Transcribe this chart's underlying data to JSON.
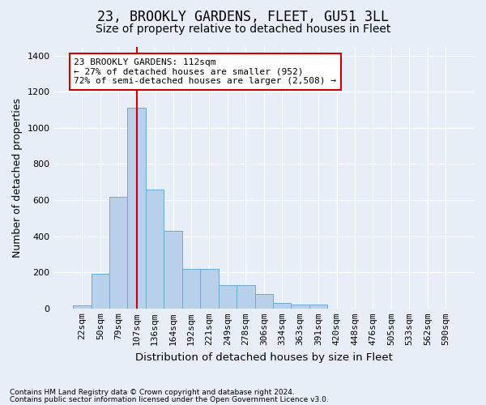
{
  "title": "23, BROOKLY GARDENS, FLEET, GU51 3LL",
  "subtitle": "Size of property relative to detached houses in Fleet",
  "xlabel": "Distribution of detached houses by size in Fleet",
  "ylabel": "Number of detached properties",
  "footnote1": "Contains HM Land Registry data © Crown copyright and database right 2024.",
  "footnote2": "Contains public sector information licensed under the Open Government Licence v3.0.",
  "bar_labels": [
    "22sqm",
    "50sqm",
    "79sqm",
    "107sqm",
    "136sqm",
    "164sqm",
    "192sqm",
    "221sqm",
    "249sqm",
    "278sqm",
    "306sqm",
    "334sqm",
    "363sqm",
    "391sqm",
    "420sqm",
    "448sqm",
    "476sqm",
    "505sqm",
    "533sqm",
    "562sqm",
    "590sqm"
  ],
  "bar_values": [
    17,
    193,
    617,
    1113,
    660,
    430,
    217,
    217,
    130,
    130,
    80,
    30,
    20,
    20,
    0,
    0,
    0,
    0,
    0,
    0,
    0
  ],
  "bar_color": "#b8d0ea",
  "bar_edgecolor": "#6aaad4",
  "vline_index": 3,
  "vline_color": "#cc0000",
  "annotation_text": "23 BROOKLY GARDENS: 112sqm\n← 27% of detached houses are smaller (952)\n72% of semi-detached houses are larger (2,508) →",
  "annotation_box_facecolor": "#ffffff",
  "annotation_box_edgecolor": "#cc0000",
  "ylim": [
    0,
    1450
  ],
  "yticks": [
    0,
    200,
    400,
    600,
    800,
    1000,
    1200,
    1400
  ],
  "bg_color": "#e8eef8",
  "grid_color": "#ffffff",
  "title_fontsize": 12,
  "subtitle_fontsize": 10,
  "xlabel_fontsize": 9.5,
  "ylabel_fontsize": 9,
  "tick_fontsize": 8,
  "annot_fontsize": 8,
  "footnote_fontsize": 6.5
}
